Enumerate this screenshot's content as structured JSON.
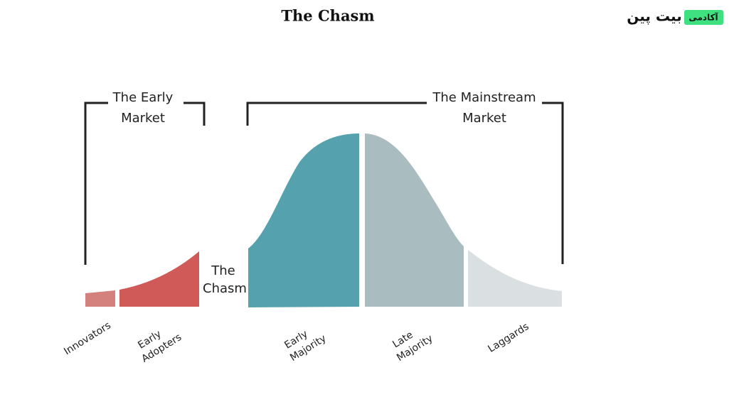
{
  "header": {
    "title": "The Chasm",
    "logo_badge": "آکادمی",
    "logo_name": "بیت پین"
  },
  "groups": [
    {
      "label_lines": [
        "The Early",
        "Market"
      ]
    },
    {
      "label_lines": [
        "The Mainstream",
        "Market"
      ]
    }
  ],
  "gap_label_lines": [
    "The",
    "Chasm"
  ],
  "segments": [
    {
      "label_lines": [
        "Innovators"
      ]
    },
    {
      "label_lines": [
        "Early",
        "Adopters"
      ]
    },
    {
      "label_lines": [
        "Early",
        "Majority"
      ]
    },
    {
      "label_lines": [
        "Late",
        "Majority"
      ]
    },
    {
      "label_lines": [
        "Laggards"
      ]
    }
  ]
}
